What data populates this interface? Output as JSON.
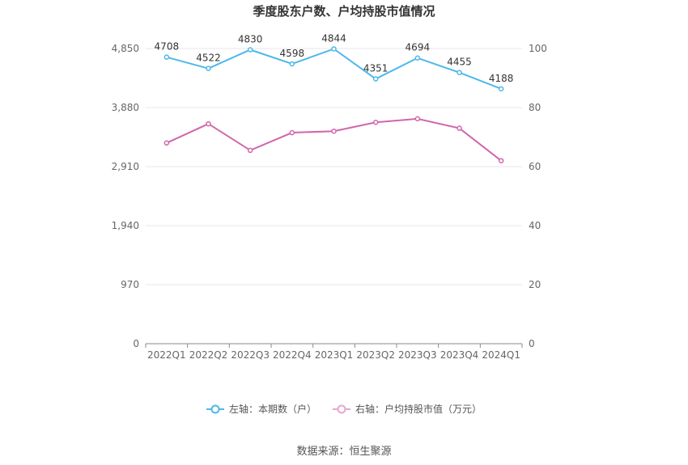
{
  "chart_data": {
    "type": "line",
    "title": "季度股东户数、户均持股市值情况",
    "categories": [
      "2022Q1",
      "2022Q2",
      "2022Q3",
      "2022Q4",
      "2023Q1",
      "2023Q2",
      "2023Q3",
      "2023Q4",
      "2024Q1"
    ],
    "left_axis": {
      "ylim": [
        0,
        4850
      ],
      "ticks": [
        "0",
        "970",
        "1,940",
        "2,910",
        "3,880",
        "4,850"
      ]
    },
    "right_axis": {
      "ylim": [
        0,
        100
      ],
      "ticks": [
        "0",
        "20",
        "40",
        "60",
        "80",
        "100"
      ]
    },
    "series": [
      {
        "name": "左轴：本期数（户）",
        "axis": "left",
        "color": "#4db8ea",
        "values": [
          4708,
          4522,
          4830,
          4598,
          4844,
          4351,
          4694,
          4455,
          4188
        ],
        "labels": [
          "4708",
          "4522",
          "4830",
          "4598",
          "4844",
          "4351",
          "4694",
          "4455",
          "4188"
        ]
      },
      {
        "name": "右轴：户均持股市值（万元）",
        "axis": "right",
        "color": "#d066ac",
        "values": [
          68.0,
          74.5,
          65.5,
          71.5,
          72.0,
          75.0,
          76.2,
          73.0,
          62.0
        ]
      }
    ],
    "grid": true,
    "legend_position": "bottom"
  },
  "source_text": "数据来源：恒生聚源"
}
